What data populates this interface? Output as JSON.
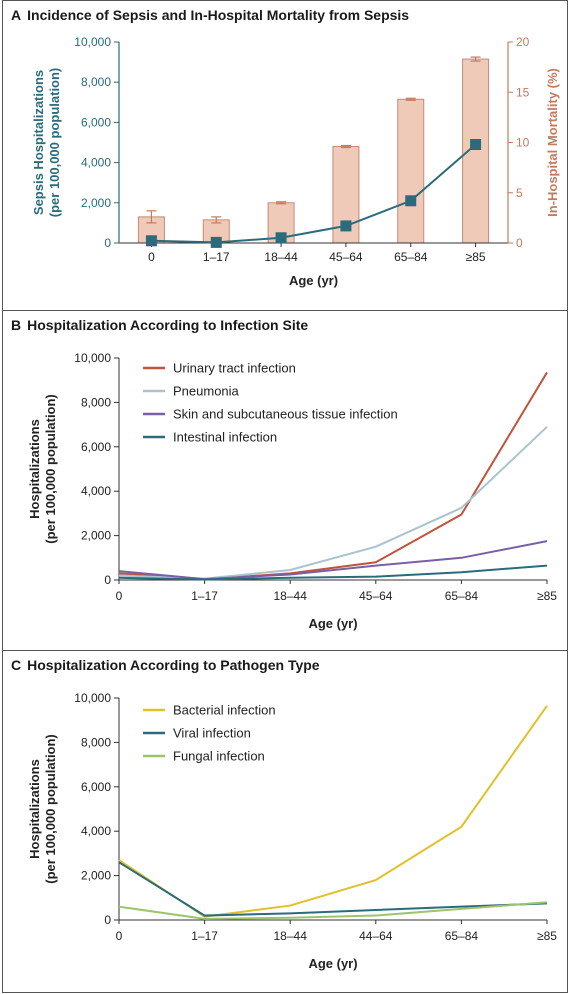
{
  "panels": [
    {
      "id": "A",
      "title": "Incidence of Sepsis and In-Hospital Mortality from Sepsis",
      "chart_data": {
        "type": "bar+line",
        "categories": [
          "0",
          "1–17",
          "18–44",
          "45–64",
          "65–84",
          "≥85"
        ],
        "xlabel": "Age (yr)",
        "ylabel_left_line1": "Sepsis Hospitalizations",
        "ylabel_left_line2": "(per 100,000 population)",
        "ylabel_right": "In-Hospital Mortality (%)",
        "left_axis": {
          "ylim": [
            0,
            10000
          ],
          "ticks": [
            0,
            2000,
            4000,
            6000,
            8000,
            10000
          ],
          "tick_labels": [
            "0",
            "2,000",
            "4,000",
            "6,000",
            "8,000",
            "10,000"
          ]
        },
        "right_axis": {
          "ylim": [
            0,
            20
          ],
          "ticks": [
            0,
            5,
            10,
            15,
            20
          ],
          "tick_labels": [
            "0",
            "5",
            "10",
            "15",
            "20"
          ]
        },
        "bars_mortality_pct": [
          2.6,
          2.3,
          4.0,
          9.6,
          14.3,
          18.3
        ],
        "bars_mortality_err": [
          0.6,
          0.3,
          0.1,
          0.1,
          0.1,
          0.2
        ],
        "line_hospitalizations": [
          110,
          30,
          260,
          850,
          2100,
          4900
        ],
        "colors": {
          "line": "#2a6b7c",
          "bar_fill": "#efcab8",
          "bar_stroke": "#c88a72",
          "right_axis": "#c47b5f"
        }
      }
    },
    {
      "id": "B",
      "title": "Hospitalization According to Infection Site",
      "chart_data": {
        "type": "line",
        "x": [
          "0",
          "1–17",
          "18–44",
          "45–64",
          "65–84",
          "≥85"
        ],
        "xlabel": "Age (yr)",
        "ylabel_line1": "Hospitalizations",
        "ylabel_line2": "(per 100,000 population)",
        "ylim": [
          0,
          10000
        ],
        "ticks": [
          0,
          2000,
          4000,
          6000,
          8000,
          10000
        ],
        "tick_labels": [
          "0",
          "2,000",
          "4,000",
          "6,000",
          "8,000",
          "10,000"
        ],
        "series": [
          {
            "name": "Urinary tract infection",
            "color": "#c0533a",
            "values": [
              300,
              30,
              300,
              800,
              2950,
              9350
            ]
          },
          {
            "name": "Pneumonia",
            "color": "#a9c4cf",
            "values": [
              200,
              60,
              450,
              1500,
              3250,
              6900
            ]
          },
          {
            "name": "Skin and subcutaneous tissue infection",
            "color": "#7b5ea7",
            "values": [
              400,
              40,
              250,
              650,
              1000,
              1750
            ]
          },
          {
            "name": "Intestinal infection",
            "color": "#2a6b7c",
            "values": [
              100,
              20,
              100,
              150,
              350,
              650
            ]
          }
        ]
      }
    },
    {
      "id": "C",
      "title": "Hospitalization According to Pathogen Type",
      "chart_data": {
        "type": "line",
        "x": [
          "0",
          "1–17",
          "18–44",
          "44–64",
          "65–84",
          "≥85"
        ],
        "xlabel": "Age (yr)",
        "ylabel_line1": "Hospitalizations",
        "ylabel_line2": "(per 100,000 population)",
        "ylim": [
          0,
          10000
        ],
        "ticks": [
          0,
          2000,
          4000,
          6000,
          8000,
          10000
        ],
        "tick_labels": [
          "0",
          "2,000",
          "4,000",
          "6,000",
          "8,000",
          "10,000"
        ],
        "series": [
          {
            "name": "Bacterial infection",
            "color": "#e0c12a",
            "values": [
              2700,
              150,
              650,
              1800,
              4200,
              9650
            ]
          },
          {
            "name": "Viral infection",
            "color": "#2a6b7c",
            "values": [
              2600,
              200,
              300,
              450,
              600,
              750
            ]
          },
          {
            "name": "Fungal infection",
            "color": "#9cc46d",
            "values": [
              600,
              50,
              100,
              200,
              500,
              800
            ]
          }
        ]
      }
    }
  ]
}
